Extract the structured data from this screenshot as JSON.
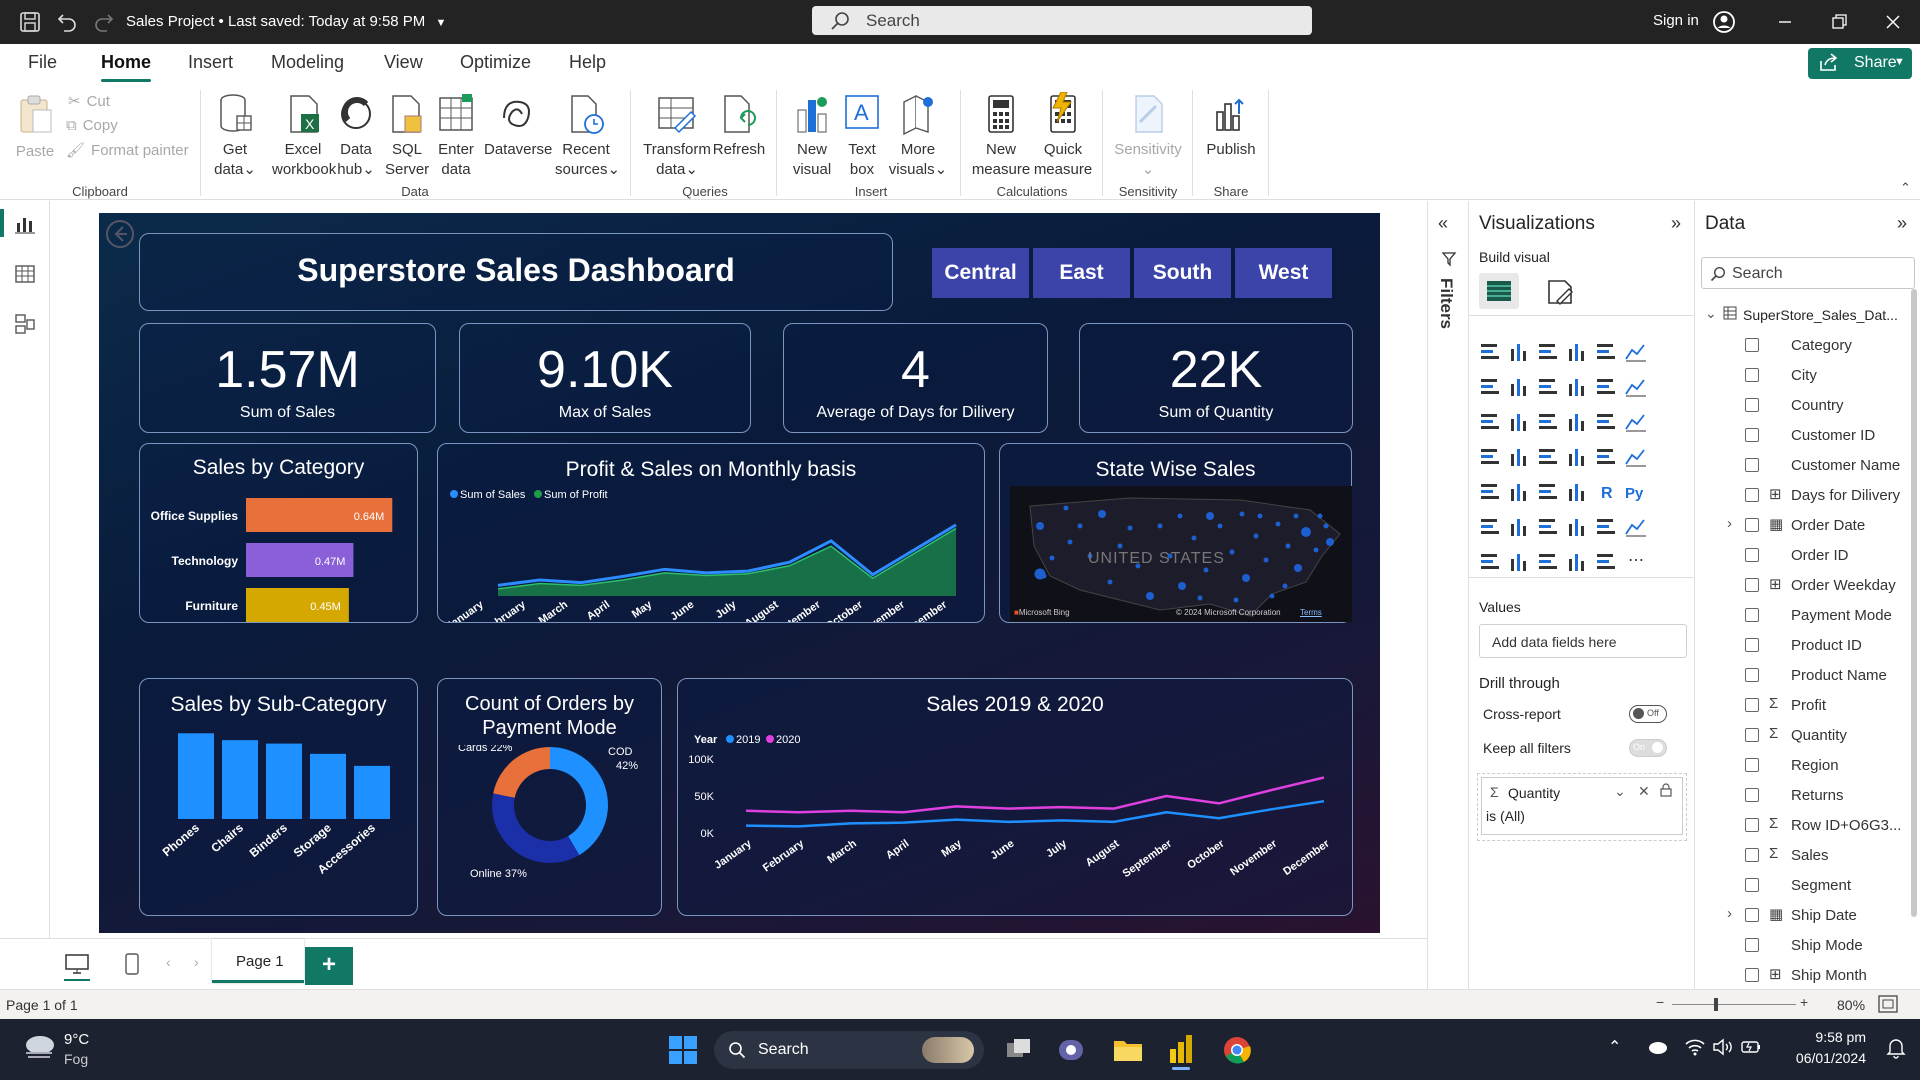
{
  "titlebar": {
    "title": "Sales Project • Last saved: Today at 9:58 PM",
    "search_placeholder": "Search",
    "signin": "Sign in"
  },
  "menu": {
    "items": [
      "File",
      "Home",
      "Insert",
      "Modeling",
      "View",
      "Optimize",
      "Help"
    ],
    "share": "Share"
  },
  "ribbon": {
    "clipboard": {
      "paste": "Paste",
      "cut": "Cut",
      "copy": "Copy",
      "format_painter": "Format painter",
      "group": "Clipboard"
    },
    "data": {
      "get_data": [
        "Get",
        "data"
      ],
      "excel": [
        "Excel",
        "workbook"
      ],
      "data_hub": [
        "Data",
        "hub"
      ],
      "sql": [
        "SQL",
        "Server"
      ],
      "enter": [
        "Enter",
        "data"
      ],
      "dataverse": "Dataverse",
      "recent": [
        "Recent",
        "sources"
      ],
      "group": "Data"
    },
    "queries": {
      "transform": [
        "Transform",
        "data"
      ],
      "refresh": "Refresh",
      "group": "Queries"
    },
    "insert": {
      "new_visual": [
        "New",
        "visual"
      ],
      "text_box": [
        "Text",
        "box"
      ],
      "more_visuals": [
        "More",
        "visuals"
      ],
      "group": "Insert"
    },
    "calculations": {
      "new_measure": [
        "New",
        "measure"
      ],
      "quick_measure": [
        "Quick",
        "measure"
      ],
      "group": "Calculations"
    },
    "sensitivity": {
      "label": "Sensitivity",
      "group": "Sensitivity"
    },
    "share": {
      "publish": "Publish",
      "group": "Share"
    }
  },
  "report": {
    "title": "Superstore Sales Dashboard",
    "regions": [
      "Central",
      "East",
      "South",
      "West"
    ],
    "kpis": [
      {
        "value": "1.57M",
        "label": "Sum of Sales"
      },
      {
        "value": "9.10K",
        "label": "Max of Sales"
      },
      {
        "value": "4",
        "label": "Average of Days for Dilivery"
      },
      {
        "value": "22K",
        "label": "Sum of Quantity"
      }
    ],
    "sales_by_category_title": "Sales by Category",
    "profit_sales_title": "Profit & Sales on Monthly basis",
    "state_sales_title": "State Wise Sales",
    "map_label": "UNITED STATES",
    "map_bing": "Microsoft Bing",
    "map_copyright": "© 2024 Microsoft Corporation",
    "map_terms": "Terms",
    "subcat_title": "Sales by Sub-Category",
    "orders_title_1": "Count of Orders by",
    "orders_title_2": "Payment Mode",
    "sales_years_title": "Sales 2019 & 2020"
  },
  "chart_data": [
    {
      "type": "bar",
      "title": "Sales by Category",
      "orientation": "horizontal",
      "categories": [
        "Office Supplies",
        "Technology",
        "Furniture"
      ],
      "values": [
        0.64,
        0.47,
        0.45
      ],
      "value_labels": [
        "0.64M",
        "0.47M",
        "0.45M"
      ],
      "colors": [
        "#e8703a",
        "#8a5fd8",
        "#d4a800"
      ]
    },
    {
      "type": "area",
      "title": "Profit & Sales on Monthly basis",
      "categories": [
        "January",
        "February",
        "March",
        "April",
        "May",
        "June",
        "July",
        "August",
        "September",
        "October",
        "November",
        "December"
      ],
      "series": [
        {
          "name": "Sum of Sales",
          "color": "#2d8cff",
          "values": [
            72,
            78,
            75,
            82,
            90,
            86,
            88,
            98,
            122,
            84,
            112,
            140
          ]
        },
        {
          "name": "Sum of Profit",
          "color": "#1f9a4a",
          "values": [
            68,
            74,
            72,
            78,
            86,
            83,
            85,
            94,
            116,
            80,
            108,
            136
          ]
        }
      ]
    },
    {
      "type": "bar",
      "title": "Sales by Sub-Category",
      "categories": [
        "Phones",
        "Chairs",
        "Binders",
        "Storage",
        "Accessories"
      ],
      "values": [
        100,
        92,
        88,
        76,
        62
      ],
      "color": "#1e90ff"
    },
    {
      "type": "pie",
      "title": "Count of Orders by Payment Mode",
      "donut": true,
      "categories": [
        "COD",
        "Online",
        "Cards"
      ],
      "values": [
        42,
        37,
        22
      ],
      "value_labels": [
        "42%",
        "37%",
        "22%"
      ],
      "colors": [
        "#1e90ff",
        "#1a2fa8",
        "#e8703a"
      ]
    },
    {
      "type": "line",
      "title": "Sales 2019 & 2020",
      "legend_title": "Year",
      "categories": [
        "January",
        "February",
        "March",
        "April",
        "May",
        "June",
        "July",
        "August",
        "September",
        "October",
        "November",
        "December"
      ],
      "yticks": [
        "100K",
        "50K",
        "0K"
      ],
      "ylim": [
        0,
        100
      ],
      "series": [
        {
          "name": "2019",
          "color": "#1e90ff",
          "values": [
            10,
            9,
            13,
            14,
            18,
            15,
            17,
            15,
            28,
            20,
            32,
            43
          ]
        },
        {
          "name": "2020",
          "color": "#e040e0",
          "values": [
            30,
            28,
            30,
            28,
            36,
            33,
            35,
            33,
            50,
            40,
            58,
            75
          ]
        }
      ]
    }
  ],
  "filters_label": "Filters",
  "viz_pane": {
    "title": "Visualizations",
    "build_visual": "Build visual",
    "values_label": "Values",
    "add_fields": "Add data fields here",
    "drill_through": "Drill through",
    "cross_report": "Cross-report",
    "cross_report_state": "Off",
    "keep_filters": "Keep all filters",
    "keep_filters_state": "On",
    "filter_field": "Quantity",
    "filter_value": "is (All)"
  },
  "data_pane": {
    "title": "Data",
    "search_placeholder": "Search",
    "table": "SuperStore_Sales_Dat...",
    "fields": [
      {
        "name": "Category",
        "sym": ""
      },
      {
        "name": "City",
        "sym": ""
      },
      {
        "name": "Country",
        "sym": ""
      },
      {
        "name": "Customer ID",
        "sym": ""
      },
      {
        "name": "Customer Name",
        "sym": ""
      },
      {
        "name": "Days for Dilivery",
        "sym": "calc"
      },
      {
        "name": "Order Date",
        "sym": "date",
        "expand": true
      },
      {
        "name": "Order ID",
        "sym": ""
      },
      {
        "name": "Order Weekday",
        "sym": "calc"
      },
      {
        "name": "Payment Mode",
        "sym": ""
      },
      {
        "name": "Product ID",
        "sym": ""
      },
      {
        "name": "Product Name",
        "sym": ""
      },
      {
        "name": "Profit",
        "sym": "sigma"
      },
      {
        "name": "Quantity",
        "sym": "sigma"
      },
      {
        "name": "Region",
        "sym": ""
      },
      {
        "name": "Returns",
        "sym": ""
      },
      {
        "name": "Row ID+O6G3...",
        "sym": "sigma"
      },
      {
        "name": "Sales",
        "sym": "sigma"
      },
      {
        "name": "Segment",
        "sym": ""
      },
      {
        "name": "Ship Date",
        "sym": "date",
        "expand": true
      },
      {
        "name": "Ship Mode",
        "sym": ""
      },
      {
        "name": "Ship Month",
        "sym": "calc"
      }
    ]
  },
  "pages": {
    "tab": "Page 1",
    "add": "+"
  },
  "status": {
    "page": "Page 1 of 1",
    "zoom": "80%"
  },
  "taskbar": {
    "temp": "9°C",
    "weather": "Fog",
    "search": "Search",
    "time": "9:58 pm",
    "date": "06/01/2024"
  }
}
